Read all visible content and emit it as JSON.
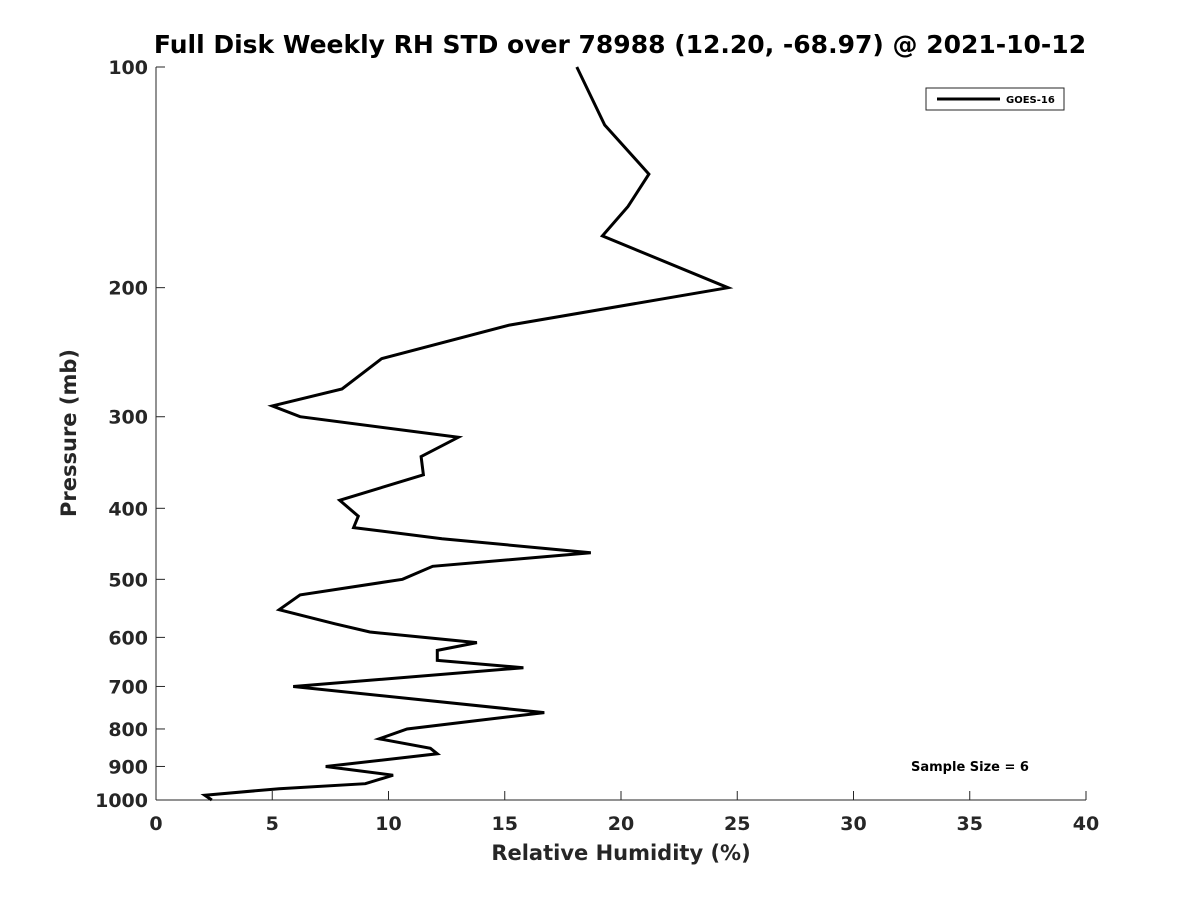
{
  "chart_data": {
    "type": "line",
    "title": "Full Disk Weekly RH STD over 78988 (12.20, -68.97) @ 2021-10-12",
    "xlabel": "Relative Humidity (%)",
    "ylabel": "Pressure (mb)",
    "xlim": [
      0,
      40
    ],
    "ylim": [
      100,
      1000
    ],
    "y_scale": "log",
    "y_reversed": true,
    "grid": false,
    "legend_position": "top-right",
    "x_ticks": [
      "0",
      "5",
      "10",
      "15",
      "20",
      "25",
      "30",
      "35",
      "40"
    ],
    "y_ticks": [
      "100",
      "200",
      "300",
      "400",
      "500",
      "600",
      "700",
      "800",
      "900",
      "1000"
    ],
    "series": [
      {
        "name": "GOES-16",
        "color": "#000000",
        "points": [
          [
            18.1,
            100
          ],
          [
            19.3,
            120
          ],
          [
            21.2,
            140
          ],
          [
            20.3,
            155
          ],
          [
            19.2,
            170
          ],
          [
            24.6,
            200
          ],
          [
            15.2,
            225
          ],
          [
            9.7,
            250
          ],
          [
            8.0,
            275
          ],
          [
            5.0,
            290
          ],
          [
            6.2,
            300
          ],
          [
            13.0,
            320
          ],
          [
            11.4,
            340
          ],
          [
            11.5,
            360
          ],
          [
            7.9,
            390
          ],
          [
            8.7,
            410
          ],
          [
            8.5,
            425
          ],
          [
            12.3,
            440
          ],
          [
            18.7,
            460
          ],
          [
            11.9,
            480
          ],
          [
            10.6,
            500
          ],
          [
            6.2,
            525
          ],
          [
            5.3,
            550
          ],
          [
            7.7,
            575
          ],
          [
            9.2,
            590
          ],
          [
            13.8,
            610
          ],
          [
            12.1,
            625
          ],
          [
            12.1,
            645
          ],
          [
            15.8,
            660
          ],
          [
            5.9,
            700
          ],
          [
            16.7,
            760
          ],
          [
            13.7,
            780
          ],
          [
            10.8,
            800
          ],
          [
            9.6,
            825
          ],
          [
            11.8,
            850
          ],
          [
            12.1,
            865
          ],
          [
            7.3,
            900
          ],
          [
            10.2,
            925
          ],
          [
            9.0,
            950
          ],
          [
            5.3,
            965
          ],
          [
            2.1,
            985
          ],
          [
            2.4,
            1000
          ]
        ]
      }
    ],
    "annotation": "Sample Size = 6"
  }
}
